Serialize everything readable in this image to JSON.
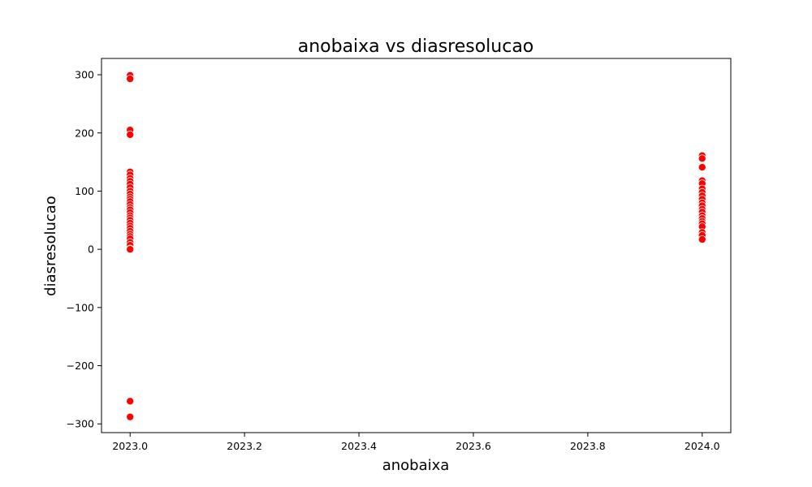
{
  "chart_data": {
    "type": "scatter",
    "title": "anobaixa vs diasresolucao",
    "xlabel": "anobaixa",
    "ylabel": "diasresolucao",
    "xlim": [
      2022.95,
      2024.05
    ],
    "ylim": [
      -315,
      328
    ],
    "x_ticks": [
      2023.0,
      2023.2,
      2023.4,
      2023.6,
      2023.8,
      2024.0
    ],
    "x_tick_labels": [
      "2023.0",
      "2023.2",
      "2023.4",
      "2023.6",
      "2023.8",
      "2024.0"
    ],
    "y_ticks": [
      -300,
      -200,
      -100,
      0,
      100,
      200,
      300
    ],
    "y_tick_labels": [
      "−300",
      "−200",
      "−100",
      "0",
      "100",
      "200",
      "300"
    ],
    "grid": false,
    "marker_color": "#ff0000",
    "points": [
      {
        "x": 2023,
        "y": 299
      },
      {
        "x": 2023,
        "y": 293
      },
      {
        "x": 2023,
        "y": 205
      },
      {
        "x": 2023,
        "y": 197
      },
      {
        "x": 2023,
        "y": 133
      },
      {
        "x": 2023,
        "y": 128
      },
      {
        "x": 2023,
        "y": 122
      },
      {
        "x": 2023,
        "y": 117
      },
      {
        "x": 2023,
        "y": 112
      },
      {
        "x": 2023,
        "y": 106
      },
      {
        "x": 2023,
        "y": 100
      },
      {
        "x": 2023,
        "y": 95
      },
      {
        "x": 2023,
        "y": 90
      },
      {
        "x": 2023,
        "y": 86
      },
      {
        "x": 2023,
        "y": 82
      },
      {
        "x": 2023,
        "y": 77
      },
      {
        "x": 2023,
        "y": 72
      },
      {
        "x": 2023,
        "y": 68
      },
      {
        "x": 2023,
        "y": 63
      },
      {
        "x": 2023,
        "y": 58
      },
      {
        "x": 2023,
        "y": 54
      },
      {
        "x": 2023,
        "y": 50
      },
      {
        "x": 2023,
        "y": 45
      },
      {
        "x": 2023,
        "y": 40
      },
      {
        "x": 2023,
        "y": 36
      },
      {
        "x": 2023,
        "y": 31
      },
      {
        "x": 2023,
        "y": 26
      },
      {
        "x": 2023,
        "y": 22
      },
      {
        "x": 2023,
        "y": 18
      },
      {
        "x": 2023,
        "y": 12
      },
      {
        "x": 2023,
        "y": 7
      },
      {
        "x": 2023,
        "y": 1
      },
      {
        "x": 2023,
        "y": 0
      },
      {
        "x": 2023,
        "y": -261
      },
      {
        "x": 2023,
        "y": -288
      },
      {
        "x": 2024,
        "y": 161
      },
      {
        "x": 2024,
        "y": 156
      },
      {
        "x": 2024,
        "y": 141
      },
      {
        "x": 2024,
        "y": 118
      },
      {
        "x": 2024,
        "y": 113
      },
      {
        "x": 2024,
        "y": 104
      },
      {
        "x": 2024,
        "y": 98
      },
      {
        "x": 2024,
        "y": 92
      },
      {
        "x": 2024,
        "y": 86
      },
      {
        "x": 2024,
        "y": 80
      },
      {
        "x": 2024,
        "y": 75
      },
      {
        "x": 2024,
        "y": 69
      },
      {
        "x": 2024,
        "y": 64
      },
      {
        "x": 2024,
        "y": 58
      },
      {
        "x": 2024,
        "y": 53
      },
      {
        "x": 2024,
        "y": 48
      },
      {
        "x": 2024,
        "y": 44
      },
      {
        "x": 2024,
        "y": 39
      },
      {
        "x": 2024,
        "y": 29
      },
      {
        "x": 2024,
        "y": 24
      },
      {
        "x": 2024,
        "y": 17
      }
    ]
  }
}
